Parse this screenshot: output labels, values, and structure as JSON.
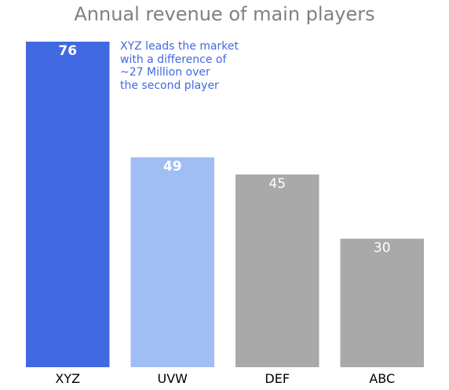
{
  "chart_data": {
    "type": "bar",
    "title": "Annual revenue of main players",
    "categories": [
      "XYZ",
      "UVW",
      "DEF",
      "ABC"
    ],
    "values": [
      76,
      49,
      45,
      30
    ],
    "bar_colors": [
      "#4169e1",
      "#a1bef4",
      "#a9a9a9",
      "#a9a9a9"
    ],
    "value_label_bold": [
      true,
      true,
      false,
      false
    ],
    "value_label_color": "#ffffff",
    "title_color": "#808080",
    "ylim": [
      0,
      76
    ],
    "axes_visible": false,
    "grid": false,
    "annotation": {
      "lines": [
        "XYZ leads the market",
        "with a difference of",
        "~27 Million over",
        "the second player"
      ],
      "color": "#4169e1"
    }
  }
}
